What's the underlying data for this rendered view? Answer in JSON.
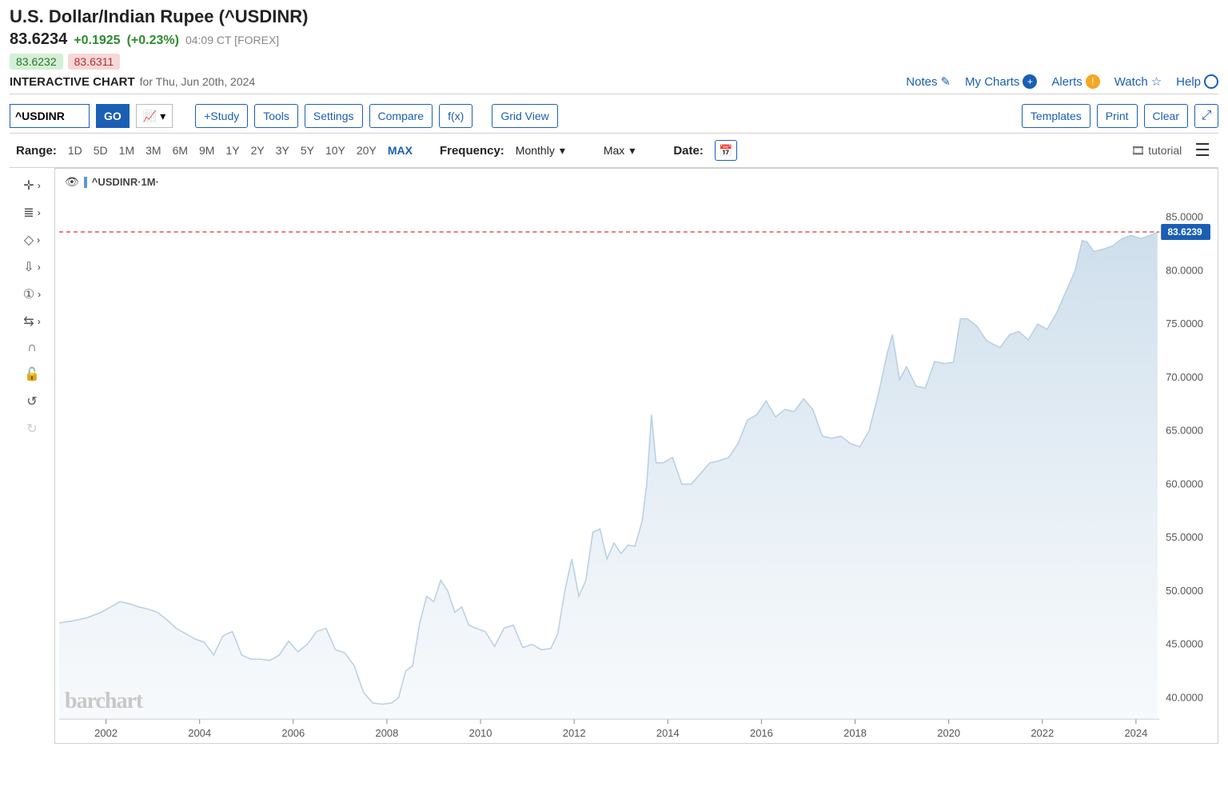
{
  "header": {
    "title": "U.S. Dollar/Indian Rupee (^USDINR)",
    "price": "83.6234",
    "change": "+0.1925",
    "change_pct": "(+0.23%)",
    "timestamp": "04:09 CT [FOREX]",
    "bid": "83.6232",
    "ask": "83.6311",
    "chart_heading": "INTERACTIVE CHART",
    "chart_date": "for Thu, Jun 20th, 2024"
  },
  "right_links": {
    "notes": "Notes",
    "mycharts": "My Charts",
    "alerts": "Alerts",
    "watch": "Watch",
    "help": "Help"
  },
  "toolbar": {
    "symbol": "^USDINR",
    "go": "GO",
    "study": "+Study",
    "tools": "Tools",
    "settings": "Settings",
    "compare": "Compare",
    "fx": "f(x)",
    "gridview": "Grid View",
    "templates": "Templates",
    "print": "Print",
    "clear": "Clear"
  },
  "ranges": {
    "label": "Range:",
    "options": [
      "1D",
      "5D",
      "1M",
      "3M",
      "6M",
      "9M",
      "1Y",
      "2Y",
      "3Y",
      "5Y",
      "10Y",
      "20Y",
      "MAX"
    ],
    "active": "MAX",
    "freq_label": "Frequency:",
    "freq_value": "Monthly",
    "date_span": "Max",
    "date_label": "Date:",
    "tutorial": "tutorial"
  },
  "chart": {
    "legend": "^USDINR·1M·",
    "watermark": "barchart",
    "type": "area",
    "line_color": "#b7cfe2",
    "fill_top": "#c8dbea",
    "fill_bottom": "#f2f6fa",
    "ref_line_color": "#d93030",
    "ref_line_value": 83.6239,
    "ref_line_label": "83.6239",
    "price_tag_bg": "#1a5fb4",
    "background": "#ffffff",
    "grid_color": "#e0e0e0",
    "y_axis": {
      "min": 38,
      "max": 87,
      "ticks": [
        40,
        45,
        50,
        55,
        60,
        65,
        70,
        75,
        80,
        85
      ],
      "tick_labels": [
        "40.0000",
        "45.0000",
        "50.0000",
        "55.0000",
        "60.0000",
        "65.0000",
        "70.0000",
        "75.0000",
        "80.0000",
        "85.0000"
      ]
    },
    "x_axis": {
      "start_year": 2001,
      "end_year": 2024.5,
      "ticks": [
        2002,
        2004,
        2006,
        2008,
        2010,
        2012,
        2014,
        2016,
        2018,
        2020,
        2022,
        2024
      ]
    },
    "data": [
      [
        2001.0,
        47.0
      ],
      [
        2001.3,
        47.2
      ],
      [
        2001.6,
        47.5
      ],
      [
        2001.9,
        48.0
      ],
      [
        2002.1,
        48.5
      ],
      [
        2002.3,
        49.0
      ],
      [
        2002.5,
        48.8
      ],
      [
        2002.7,
        48.5
      ],
      [
        2002.9,
        48.3
      ],
      [
        2003.1,
        48.0
      ],
      [
        2003.3,
        47.3
      ],
      [
        2003.5,
        46.5
      ],
      [
        2003.7,
        46.0
      ],
      [
        2003.9,
        45.5
      ],
      [
        2004.1,
        45.2
      ],
      [
        2004.3,
        44.0
      ],
      [
        2004.5,
        45.8
      ],
      [
        2004.7,
        46.2
      ],
      [
        2004.9,
        44.0
      ],
      [
        2005.1,
        43.6
      ],
      [
        2005.3,
        43.6
      ],
      [
        2005.5,
        43.5
      ],
      [
        2005.7,
        44.0
      ],
      [
        2005.9,
        45.3
      ],
      [
        2006.1,
        44.3
      ],
      [
        2006.3,
        45.0
      ],
      [
        2006.5,
        46.2
      ],
      [
        2006.7,
        46.5
      ],
      [
        2006.9,
        44.5
      ],
      [
        2007.1,
        44.2
      ],
      [
        2007.3,
        43.0
      ],
      [
        2007.5,
        40.5
      ],
      [
        2007.7,
        39.5
      ],
      [
        2007.9,
        39.4
      ],
      [
        2008.1,
        39.5
      ],
      [
        2008.25,
        40.0
      ],
      [
        2008.4,
        42.5
      ],
      [
        2008.55,
        43.0
      ],
      [
        2008.7,
        47.0
      ],
      [
        2008.85,
        49.5
      ],
      [
        2009.0,
        49.0
      ],
      [
        2009.15,
        51.0
      ],
      [
        2009.3,
        50.0
      ],
      [
        2009.45,
        48.0
      ],
      [
        2009.6,
        48.5
      ],
      [
        2009.75,
        46.8
      ],
      [
        2009.9,
        46.5
      ],
      [
        2010.1,
        46.2
      ],
      [
        2010.3,
        44.8
      ],
      [
        2010.5,
        46.5
      ],
      [
        2010.7,
        46.8
      ],
      [
        2010.9,
        44.7
      ],
      [
        2011.1,
        45.0
      ],
      [
        2011.3,
        44.5
      ],
      [
        2011.5,
        44.6
      ],
      [
        2011.65,
        46.0
      ],
      [
        2011.8,
        50.0
      ],
      [
        2011.95,
        53.0
      ],
      [
        2012.1,
        49.5
      ],
      [
        2012.25,
        51.0
      ],
      [
        2012.4,
        55.5
      ],
      [
        2012.55,
        55.8
      ],
      [
        2012.7,
        53.0
      ],
      [
        2012.85,
        54.5
      ],
      [
        2013.0,
        53.5
      ],
      [
        2013.15,
        54.3
      ],
      [
        2013.3,
        54.2
      ],
      [
        2013.45,
        56.5
      ],
      [
        2013.55,
        60.0
      ],
      [
        2013.65,
        66.5
      ],
      [
        2013.75,
        62.0
      ],
      [
        2013.9,
        62.0
      ],
      [
        2014.1,
        62.5
      ],
      [
        2014.3,
        60.0
      ],
      [
        2014.5,
        60.0
      ],
      [
        2014.7,
        61.0
      ],
      [
        2014.9,
        62.0
      ],
      [
        2015.1,
        62.2
      ],
      [
        2015.3,
        62.5
      ],
      [
        2015.5,
        63.8
      ],
      [
        2015.7,
        66.0
      ],
      [
        2015.9,
        66.5
      ],
      [
        2016.1,
        67.8
      ],
      [
        2016.3,
        66.3
      ],
      [
        2016.5,
        67.0
      ],
      [
        2016.7,
        66.8
      ],
      [
        2016.9,
        68.0
      ],
      [
        2017.1,
        67.0
      ],
      [
        2017.3,
        64.5
      ],
      [
        2017.5,
        64.3
      ],
      [
        2017.7,
        64.5
      ],
      [
        2017.9,
        63.8
      ],
      [
        2018.1,
        63.5
      ],
      [
        2018.3,
        65.0
      ],
      [
        2018.5,
        68.5
      ],
      [
        2018.7,
        72.5
      ],
      [
        2018.8,
        74.0
      ],
      [
        2018.95,
        69.8
      ],
      [
        2019.1,
        71.0
      ],
      [
        2019.3,
        69.2
      ],
      [
        2019.5,
        69.0
      ],
      [
        2019.7,
        71.5
      ],
      [
        2019.9,
        71.3
      ],
      [
        2020.1,
        71.4
      ],
      [
        2020.25,
        75.5
      ],
      [
        2020.4,
        75.5
      ],
      [
        2020.6,
        74.8
      ],
      [
        2020.8,
        73.5
      ],
      [
        2020.95,
        73.1
      ],
      [
        2021.1,
        72.8
      ],
      [
        2021.3,
        74.0
      ],
      [
        2021.5,
        74.3
      ],
      [
        2021.7,
        73.5
      ],
      [
        2021.9,
        75.0
      ],
      [
        2022.1,
        74.5
      ],
      [
        2022.3,
        76.0
      ],
      [
        2022.5,
        78.0
      ],
      [
        2022.7,
        80.0
      ],
      [
        2022.85,
        82.8
      ],
      [
        2022.95,
        82.7
      ],
      [
        2023.1,
        81.8
      ],
      [
        2023.3,
        82.0
      ],
      [
        2023.5,
        82.3
      ],
      [
        2023.7,
        83.0
      ],
      [
        2023.9,
        83.3
      ],
      [
        2024.1,
        83.0
      ],
      [
        2024.3,
        83.3
      ],
      [
        2024.46,
        83.6
      ]
    ]
  }
}
